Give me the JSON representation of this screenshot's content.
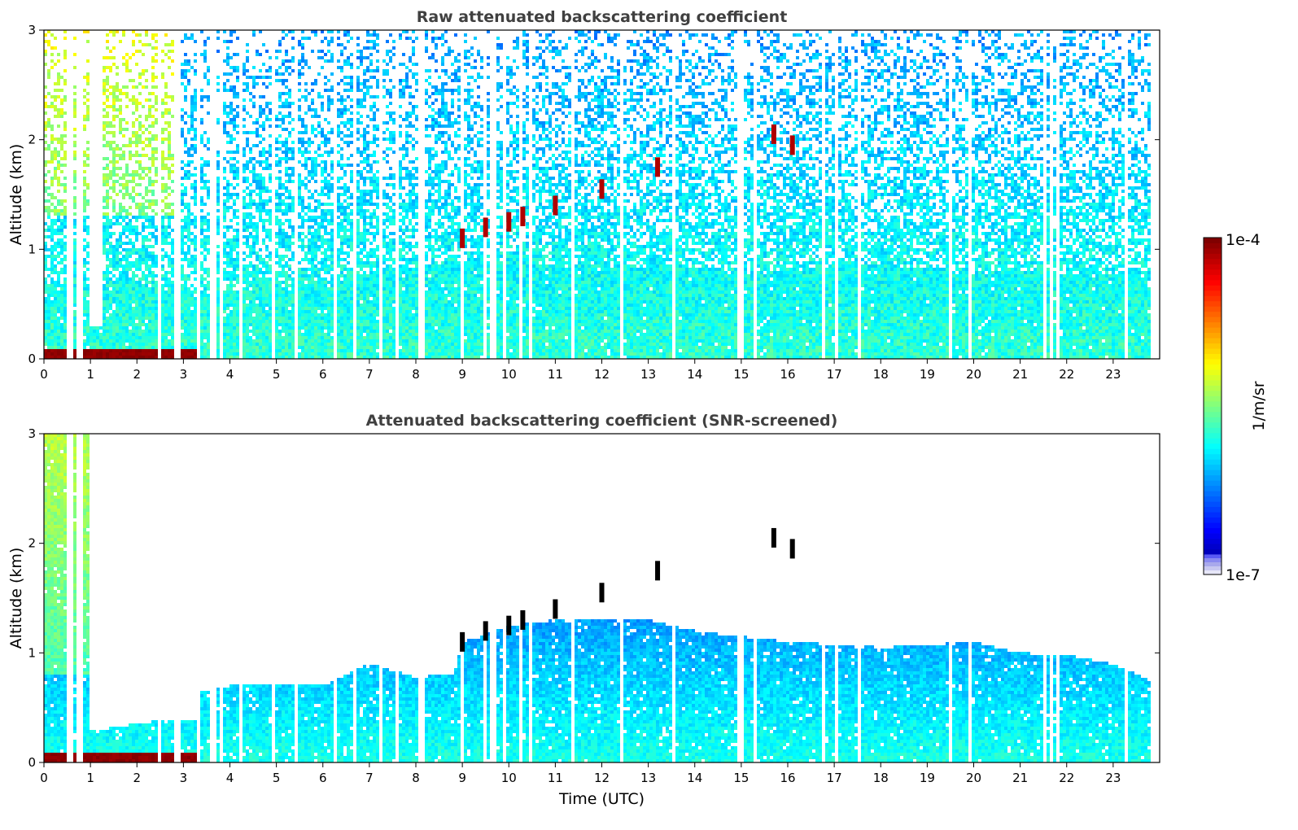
{
  "chart_data": [
    {
      "type": "heatmap",
      "title": "Raw attenuated backscattering coefficient",
      "xlabel": "",
      "ylabel": "Altitude (km)",
      "xlim": [
        0,
        24
      ],
      "ylim": [
        0,
        3
      ],
      "x_ticks": [
        "0",
        "1",
        "2",
        "3",
        "4",
        "5",
        "6",
        "7",
        "8",
        "9",
        "10",
        "11",
        "12",
        "13",
        "14",
        "15",
        "16",
        "17",
        "18",
        "19",
        "20",
        "21",
        "22",
        "23"
      ],
      "y_ticks": [
        "0",
        "1",
        "2",
        "3"
      ],
      "features": {
        "surface_layer": {
          "x_range": [
            0,
            3.3
          ],
          "y_range": [
            0,
            0.1
          ],
          "level": "1e-4"
        },
        "aerosol_layer_top_km": [
          [
            0,
            0.7
          ],
          [
            3.5,
            0.6
          ],
          [
            6,
            0.7
          ],
          [
            9,
            0.9
          ],
          [
            12,
            0.85
          ],
          [
            15,
            0.8
          ],
          [
            18,
            0.85
          ],
          [
            21,
            0.8
          ],
          [
            23.8,
            0.75
          ]
        ],
        "cloud_trace": [
          [
            9.0,
            1.1
          ],
          [
            9.5,
            1.2
          ],
          [
            10.0,
            1.25
          ],
          [
            10.3,
            1.3
          ],
          [
            11.0,
            1.4
          ],
          [
            12.0,
            1.55
          ],
          [
            13.2,
            1.75
          ],
          [
            15.7,
            2.05
          ],
          [
            16.1,
            1.95
          ]
        ],
        "noisy_column_gap": {
          "x_range": [
            0.95,
            1.25
          ],
          "y_top_km": 0.3
        }
      }
    },
    {
      "type": "heatmap",
      "title": "Attenuated backscattering coefficient (SNR-screened)",
      "xlabel": "Time (UTC)",
      "ylabel": "Altitude (km)",
      "xlim": [
        0,
        24
      ],
      "ylim": [
        0,
        3
      ],
      "x_ticks": [
        "0",
        "1",
        "2",
        "3",
        "4",
        "5",
        "6",
        "7",
        "8",
        "9",
        "10",
        "11",
        "12",
        "13",
        "14",
        "15",
        "16",
        "17",
        "18",
        "19",
        "20",
        "21",
        "22",
        "23"
      ],
      "y_ticks": [
        "0",
        "1",
        "2",
        "3"
      ],
      "features": {
        "surface_layer": {
          "x_range": [
            0,
            3.3
          ],
          "y_range": [
            0,
            0.1
          ],
          "level": "1e-4"
        },
        "screened_top_km": [
          [
            0,
            3.0
          ],
          [
            0.95,
            3.0
          ],
          [
            1.25,
            0.3
          ],
          [
            2.7,
            0.4
          ],
          [
            3.3,
            0.4
          ],
          [
            3.4,
            0.65
          ],
          [
            4,
            0.7
          ],
          [
            6,
            0.7
          ],
          [
            7,
            0.9
          ],
          [
            8,
            0.78
          ],
          [
            8.8,
            0.8
          ],
          [
            9,
            1.1
          ],
          [
            10,
            1.25
          ],
          [
            11,
            1.3
          ],
          [
            12,
            1.3
          ],
          [
            13,
            1.3
          ],
          [
            14,
            1.2
          ],
          [
            16,
            1.1
          ],
          [
            18,
            1.05
          ],
          [
            20,
            1.1
          ],
          [
            21,
            1.0
          ],
          [
            22,
            0.98
          ],
          [
            23,
            0.9
          ],
          [
            23.8,
            0.75
          ]
        ],
        "cloud_trace": [
          [
            9.0,
            1.1
          ],
          [
            9.5,
            1.2
          ],
          [
            10.0,
            1.25
          ],
          [
            10.3,
            1.3
          ],
          [
            11.0,
            1.4
          ],
          [
            12.0,
            1.55
          ],
          [
            13.2,
            1.75
          ],
          [
            15.7,
            2.05
          ],
          [
            16.1,
            1.95
          ]
        ]
      }
    }
  ],
  "colorbar": {
    "label": "1/m/sr",
    "max_label": "1e-4",
    "min_label": "1e-7",
    "scale": "log",
    "colormap": "jet",
    "under_colors": [
      "#e6e6f8",
      "#c8c8f0",
      "#a9a9ec",
      "#8a8af0",
      "#5a5af5"
    ]
  },
  "colors": {
    "background": "#ffffff",
    "title": "#404040",
    "surface_layer": "#8b0000",
    "screened_surface": "#000000"
  }
}
